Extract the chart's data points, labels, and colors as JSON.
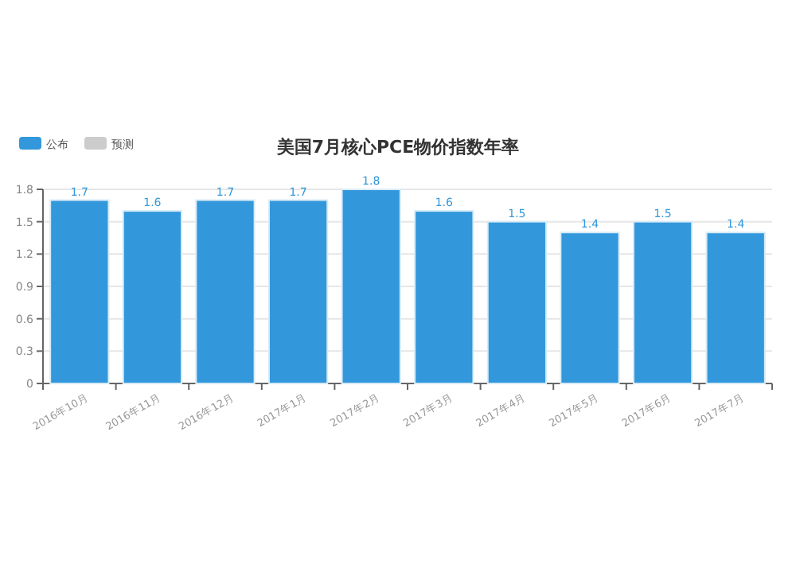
{
  "chart_data": {
    "type": "bar",
    "title": "美国7月核心PCE物价指数年率",
    "categories": [
      "2016年10月",
      "2016年11月",
      "2016年12月",
      "2017年1月",
      "2017年2月",
      "2017年3月",
      "2017年4月",
      "2017年5月",
      "2017年6月",
      "2017年7月"
    ],
    "series": [
      {
        "name": "公布",
        "color": "#3398db",
        "values": [
          1.7,
          1.6,
          1.7,
          1.7,
          1.8,
          1.6,
          1.5,
          1.4,
          1.5,
          1.4
        ]
      },
      {
        "name": "预测",
        "color": "#cccccc",
        "values": [
          null,
          null,
          null,
          null,
          null,
          null,
          null,
          null,
          null,
          null
        ]
      }
    ],
    "ylim": [
      0,
      1.8
    ],
    "yticks": [
      0,
      0.3,
      0.6,
      0.9,
      1.2,
      1.5,
      1.8
    ],
    "grid": "y",
    "legend": "top left",
    "data_labels": true
  }
}
